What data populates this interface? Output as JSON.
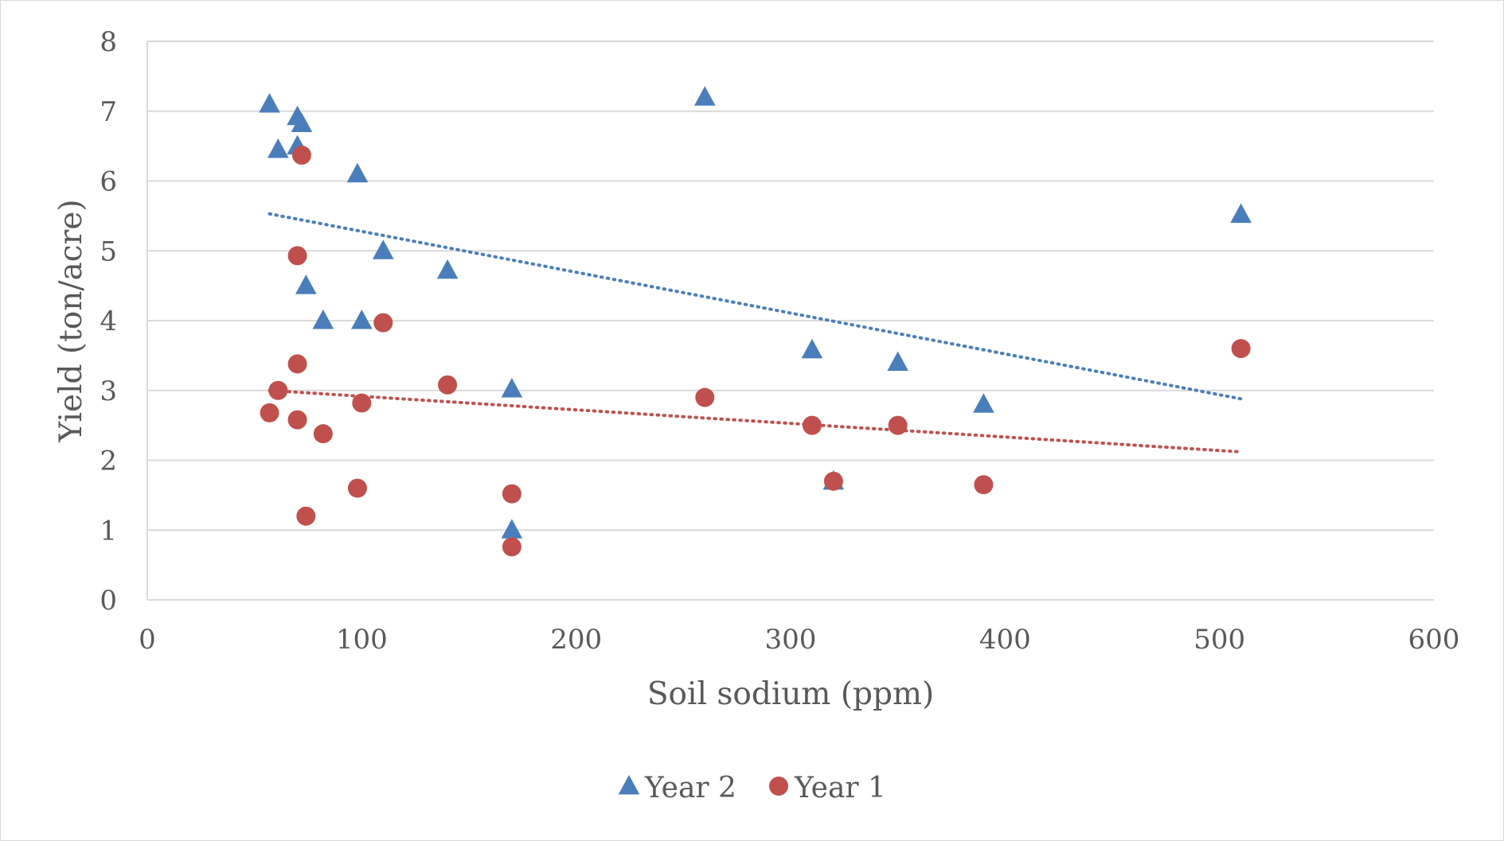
{
  "chart_data": {
    "type": "scatter",
    "title": "",
    "xlabel": "Soil sodium (ppm)",
    "ylabel": "Yield (ton/acre)",
    "xlim": [
      0,
      600
    ],
    "ylim": [
      0,
      8
    ],
    "x_ticks": [
      "0",
      "100",
      "200",
      "300",
      "400",
      "500",
      "600"
    ],
    "y_ticks": [
      "0",
      "1",
      "2",
      "3",
      "4",
      "5",
      "6",
      "7",
      "8"
    ],
    "grid": "horizontal",
    "legend_position": "bottom",
    "series": [
      {
        "name": "Year 2",
        "marker": "triangle",
        "color": "#4a7ebb",
        "points": [
          [
            57,
            7.1
          ],
          [
            61,
            6.45
          ],
          [
            70,
            6.5
          ],
          [
            70,
            6.92
          ],
          [
            72,
            6.82
          ],
          [
            74,
            4.5
          ],
          [
            82,
            4.0
          ],
          [
            98,
            6.1
          ],
          [
            100,
            4.0
          ],
          [
            110,
            5.0
          ],
          [
            140,
            4.72
          ],
          [
            170,
            3.02
          ],
          [
            170,
            1.0
          ],
          [
            260,
            7.2
          ],
          [
            310,
            3.58
          ],
          [
            320,
            1.7
          ],
          [
            350,
            3.4
          ],
          [
            390,
            2.8
          ],
          [
            510,
            5.52
          ]
        ],
        "trendline": {
          "x": [
            57,
            510
          ],
          "y": [
            5.53,
            2.88
          ]
        }
      },
      {
        "name": "Year 1",
        "marker": "circle",
        "color": "#c0504d",
        "points": [
          [
            57,
            2.68
          ],
          [
            61,
            3.0
          ],
          [
            70,
            4.93
          ],
          [
            70,
            3.38
          ],
          [
            70,
            2.58
          ],
          [
            72,
            6.37
          ],
          [
            74,
            1.2
          ],
          [
            82,
            2.38
          ],
          [
            98,
            1.6
          ],
          [
            100,
            2.82
          ],
          [
            110,
            3.97
          ],
          [
            140,
            3.08
          ],
          [
            170,
            1.52
          ],
          [
            170,
            0.76
          ],
          [
            260,
            2.9
          ],
          [
            310,
            2.5
          ],
          [
            320,
            1.7
          ],
          [
            350,
            2.5
          ],
          [
            390,
            1.65
          ],
          [
            510,
            3.6
          ]
        ],
        "trendline": {
          "x": [
            57,
            510
          ],
          "y": [
            3.0,
            2.12
          ]
        }
      }
    ]
  }
}
